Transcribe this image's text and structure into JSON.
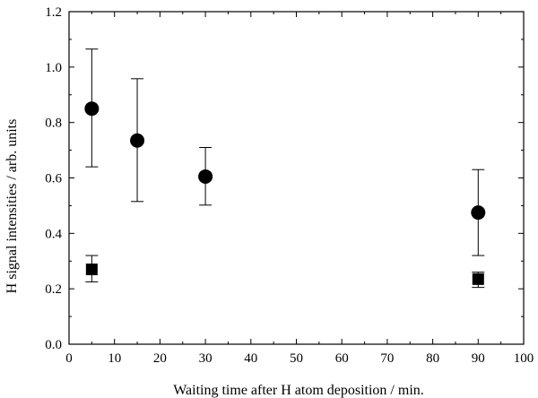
{
  "chart_data": {
    "type": "scatter",
    "title": "",
    "xlabel": "Waiting time after H atom deposition / min.",
    "ylabel": "H signal intensities / arb. units",
    "xlim": [
      0,
      100
    ],
    "ylim": [
      0.0,
      1.2
    ],
    "xticks": [
      0,
      10,
      20,
      30,
      40,
      50,
      60,
      70,
      80,
      90,
      100
    ],
    "yticks": [
      0.0,
      0.2,
      0.4,
      0.6,
      0.8,
      1.0,
      1.2
    ],
    "x_tick_labels": [
      "0",
      "10",
      "20",
      "30",
      "40",
      "50",
      "60",
      "70",
      "80",
      "90",
      "100"
    ],
    "y_tick_labels": [
      "0.0",
      "0.2",
      "0.4",
      "0.6",
      "0.8",
      "1.0",
      "1.2"
    ],
    "grid": false,
    "legend": "none",
    "series": [
      {
        "marker": "circle",
        "color": "#000000",
        "points": [
          {
            "x": 5,
            "y": 0.85,
            "err_low": 0.64,
            "err_high": 1.065
          },
          {
            "x": 15,
            "y": 0.735,
            "err_low": 0.515,
            "err_high": 0.958
          },
          {
            "x": 30,
            "y": 0.605,
            "err_low": 0.502,
            "err_high": 0.71
          },
          {
            "x": 90,
            "y": 0.475,
            "err_low": 0.32,
            "err_high": 0.63
          }
        ]
      },
      {
        "marker": "square",
        "color": "#000000",
        "points": [
          {
            "x": 5,
            "y": 0.27,
            "err_low": 0.225,
            "err_high": 0.32
          },
          {
            "x": 90,
            "y": 0.235,
            "err_low": 0.205,
            "err_high": 0.26
          }
        ]
      }
    ]
  }
}
